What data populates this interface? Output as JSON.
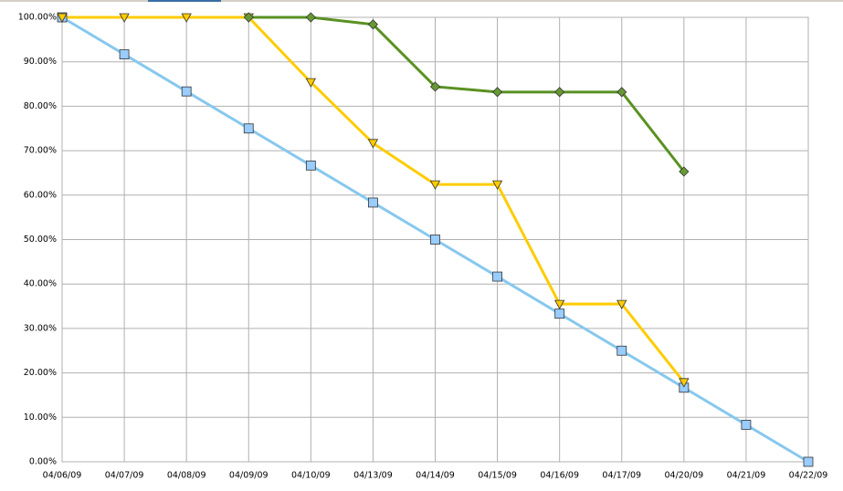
{
  "chart_data": {
    "type": "line",
    "categories": [
      "04/06/09",
      "04/07/09",
      "04/08/09",
      "04/09/09",
      "04/10/09",
      "04/13/09",
      "04/14/09",
      "04/15/09",
      "04/16/09",
      "04/17/09",
      "04/20/09",
      "04/21/09",
      "04/22/09"
    ],
    "series": [
      {
        "color": "#87c8ee",
        "marker": "square",
        "marker_color": "#99ccff",
        "values": [
          100,
          91.67,
          83.33,
          75,
          66.67,
          58.33,
          50,
          41.67,
          33.33,
          25,
          16.67,
          8.33,
          0
        ]
      },
      {
        "color": "#ffcc00",
        "marker": "triangle-down",
        "marker_color": "#ffcc00",
        "values": [
          100,
          100,
          100,
          100,
          85.4,
          71.7,
          62.4,
          62.4,
          35.5,
          35.5,
          17.9,
          null,
          null
        ]
      },
      {
        "color": "#5a9122",
        "marker": "diamond",
        "marker_color": "#669933",
        "values": [
          null,
          null,
          null,
          100,
          100,
          98.4,
          84.4,
          83.2,
          83.2,
          83.2,
          65.3,
          null,
          null
        ]
      }
    ],
    "ylim": [
      0,
      100
    ],
    "yticks": [
      {
        "value": 0,
        "label": "0.00%"
      },
      {
        "value": 10,
        "label": "10.00%"
      },
      {
        "value": 20,
        "label": "20.00%"
      },
      {
        "value": 30,
        "label": "30.00%"
      },
      {
        "value": 40,
        "label": "40.00%"
      },
      {
        "value": 50,
        "label": "50.00%"
      },
      {
        "value": 60,
        "label": "60.00%"
      },
      {
        "value": 70,
        "label": "70.00%"
      },
      {
        "value": 80,
        "label": "80.00%"
      },
      {
        "value": 90,
        "label": "90.00%"
      },
      {
        "value": 100,
        "label": "100.00%"
      }
    ],
    "grid": true
  }
}
